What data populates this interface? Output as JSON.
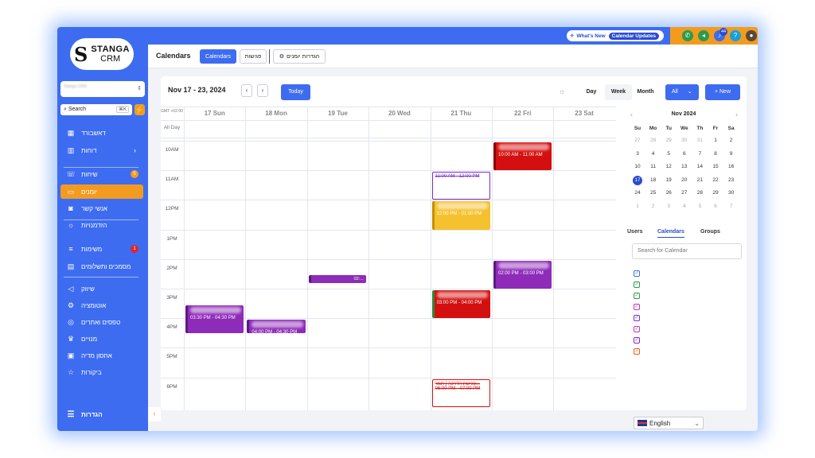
{
  "brand": {
    "name": "STANGA",
    "sub": "CRM"
  },
  "sidebar": {
    "account": "Stanga CRM",
    "search_label": "Search",
    "search_kbd": "⌘K",
    "items": [
      {
        "label": "דאשבורד",
        "icon": "grid-icon",
        "glyph": "▦"
      },
      {
        "label": "דוחות",
        "icon": "bar-chart-icon",
        "glyph": "▥",
        "chevron": "›"
      },
      {
        "label": "שיחות",
        "icon": "chat-icon",
        "glyph": "☏",
        "badge": "5"
      },
      {
        "label": "יומנים",
        "icon": "calendar-icon",
        "glyph": "▭",
        "active": true
      },
      {
        "label": "אנשי קשר",
        "icon": "contact-icon",
        "glyph": "◙"
      },
      {
        "label": "הזדמנויות",
        "icon": "lightbulb-icon",
        "glyph": "☼"
      },
      {
        "label": "משימות",
        "icon": "list-icon",
        "glyph": "≡",
        "badge": "1"
      },
      {
        "label": "מסמכים ותשלומים",
        "icon": "document-icon",
        "glyph": "▤"
      },
      {
        "label": "שיווק",
        "icon": "megaphone-icon",
        "glyph": "◁"
      },
      {
        "label": "אוטומציה",
        "icon": "automation-icon",
        "glyph": "⚙"
      },
      {
        "label": "טפסים ואתרים",
        "icon": "globe-icon",
        "glyph": "◎"
      },
      {
        "label": "מנויים",
        "icon": "crown-icon",
        "glyph": "♛"
      },
      {
        "label": "אחסון מדיה",
        "icon": "archive-icon",
        "glyph": "▣"
      },
      {
        "label": "ביקורות",
        "icon": "star-icon",
        "glyph": "☆"
      }
    ],
    "settings_label": "הגדרות"
  },
  "topbar": {
    "whats_new": "What's New",
    "calendar_updates": "Calendar Updates",
    "notifications_count": "44"
  },
  "subheader": {
    "title": "Calendars",
    "tabs": [
      "Calendars",
      "פגישות"
    ],
    "settings_btn": "הגדרות יומנים"
  },
  "calendar": {
    "range": "Nov 17 - 23, 2024",
    "today": "Today",
    "views": [
      "Day",
      "Week",
      "Month"
    ],
    "active_view": "Week",
    "filter": "All",
    "new": "+ New",
    "gmt_label": "GMT +02:00",
    "allday": "All Day",
    "days": [
      "17 Sun",
      "18 Mon",
      "19 Tue",
      "20 Wed",
      "21 Thu",
      "22 Fri",
      "23 Sat"
    ],
    "hours": [
      "10AM",
      "11AM",
      "12PM",
      "1PM",
      "2PM",
      "3PM",
      "4PM",
      "5PM",
      "6PM"
    ],
    "events": [
      {
        "day": 5,
        "start": 10.0,
        "end": 11.0,
        "time": "10:00 AM - 11:00 AM",
        "color": "#d40f0f",
        "border": "#8a0000"
      },
      {
        "day": 4,
        "start": 11.0,
        "end": 12.0,
        "time": "11:00 AM - 12:00 PM",
        "color": "#ffffff",
        "border": "#7a2ad0",
        "text": "#7a2ad0",
        "strike": true
      },
      {
        "day": 4,
        "start": 12.0,
        "end": 13.0,
        "time": "12:00 PM - 01:00 PM",
        "color": "#f5c12e",
        "border": "#c49000"
      },
      {
        "day": 5,
        "start": 14.0,
        "end": 15.0,
        "time": "02:00 PM - 03:00 PM",
        "color": "#8e2bb8",
        "border": "#5a1a80"
      },
      {
        "day": 2,
        "start": 14.5,
        "end": 14.8,
        "time": "02:...",
        "color": "#8e2bb8",
        "border": "#5a1a80",
        "small": true
      },
      {
        "day": 4,
        "start": 15.0,
        "end": 16.0,
        "time": "03:00 PM - 04:00 PM",
        "color": "#d40f0f",
        "border": "#2c8a3a"
      },
      {
        "day": 0,
        "start": 15.5,
        "end": 16.5,
        "time": "03:30 PM - 04:30 PM",
        "color": "#8e2bb8",
        "border": "#5a1a80"
      },
      {
        "day": 1,
        "start": 16.0,
        "end": 16.5,
        "time": "04:00 PM - 04:30 PM",
        "color": "#8e2bb8",
        "border": "#5a1a80"
      },
      {
        "day": 4,
        "start": 18.0,
        "end": 19.0,
        "title": "פגישת הדרכה | תמר...",
        "time": "06:00 PM - 07:00 PM",
        "color": "#ffffff",
        "border": "#d40f0f",
        "text": "#d40f0f",
        "strike": true
      }
    ]
  },
  "mini_calendar": {
    "month": "Nov 2024",
    "weekdays": [
      "Su",
      "Mo",
      "Tu",
      "We",
      "Th",
      "Fr",
      "Sa"
    ],
    "weeks": [
      [
        "27",
        "28",
        "29",
        "30",
        "31",
        "1",
        "2"
      ],
      [
        "3",
        "4",
        "5",
        "6",
        "7",
        "8",
        "9"
      ],
      [
        "10",
        "11",
        "12",
        "13",
        "14",
        "15",
        "16"
      ],
      [
        "17",
        "18",
        "19",
        "20",
        "21",
        "22",
        "23"
      ],
      [
        "24",
        "25",
        "26",
        "27",
        "28",
        "29",
        "30"
      ],
      [
        "1",
        "2",
        "3",
        "4",
        "5",
        "6",
        "7"
      ]
    ],
    "today": "17"
  },
  "panel": {
    "tabs": [
      "Users",
      "Calendars",
      "Groups"
    ],
    "active_tab": "Calendars",
    "search_placeholder": "Search for Calendar",
    "calendar_colors": [
      "#3d6cf0",
      "#2c9a4a",
      "#2c9a4a",
      "#c03ab0",
      "#7a2ad0",
      "#c03ab0",
      "#7a2ad0",
      "#f05a1a"
    ]
  },
  "language": "English"
}
